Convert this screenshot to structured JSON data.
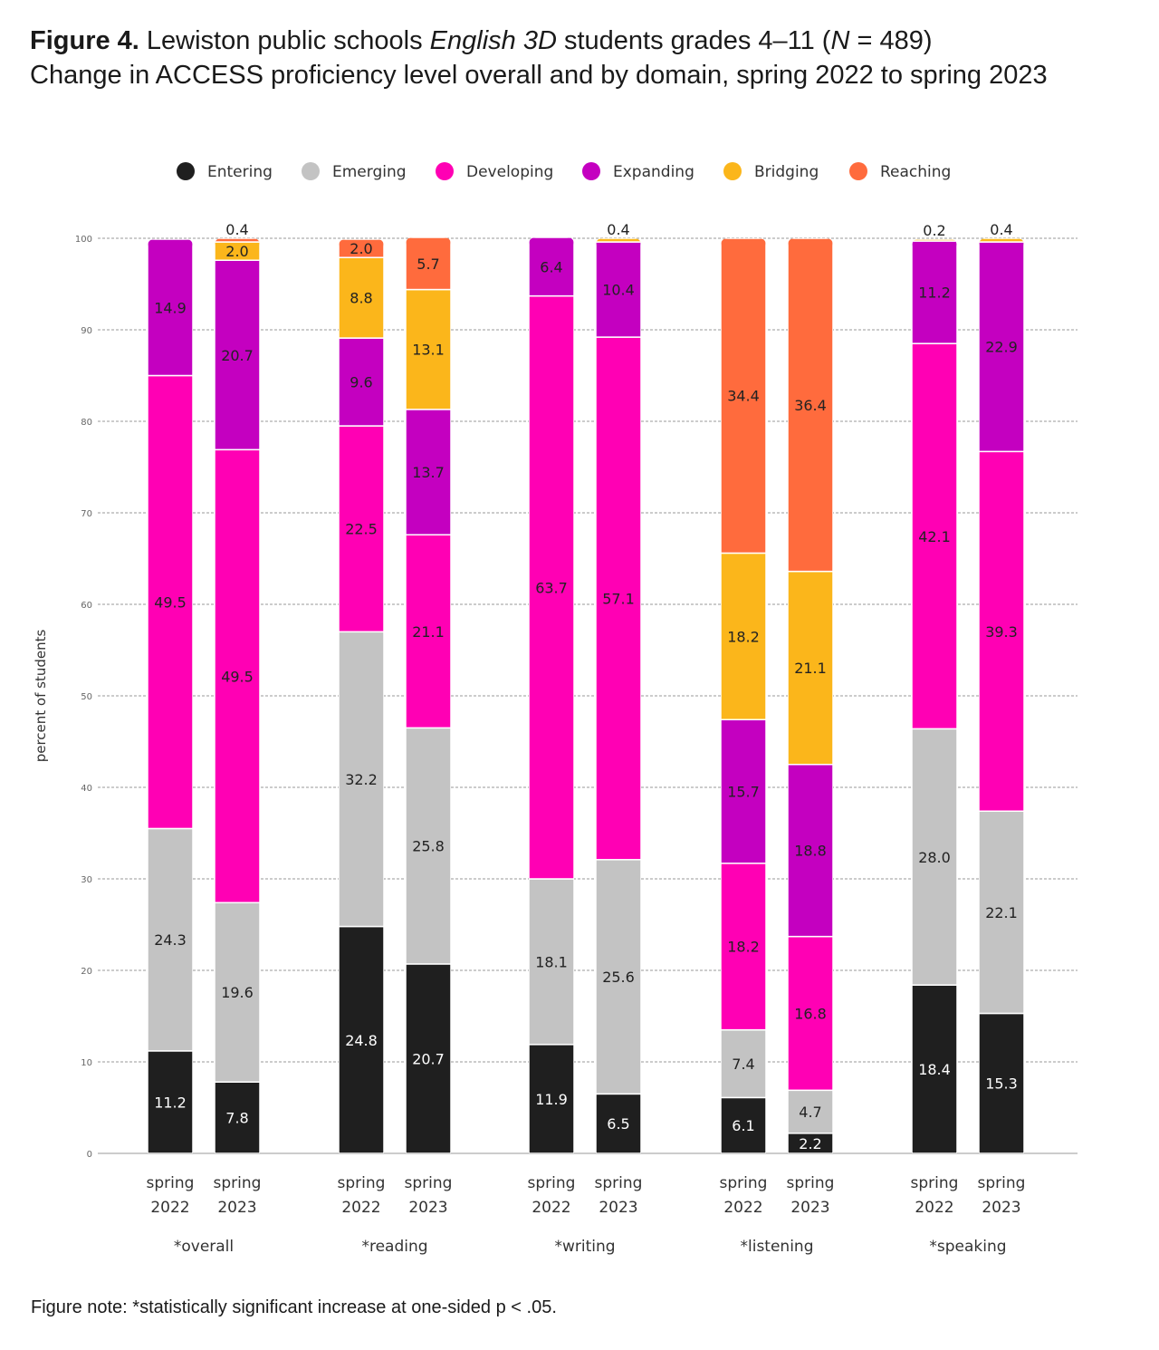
{
  "figure_label": "Figure 4.",
  "title_part1": " Lewiston public schools ",
  "title_italic": "English 3D",
  "title_part2": " students grades 4–11 (",
  "title_n_italic": "N",
  "title_part3": " = 489)",
  "subtitle": "Change in ACCESS proficiency level overall and by domain, spring 2022 to spring 2023",
  "note": "Figure note: *statistically significant increase at one-sided p < .05.",
  "chart_data": {
    "type": "bar",
    "stacked": true,
    "ylabel": "percent of students",
    "ylim": [
      0,
      100
    ],
    "yticks": [
      "0",
      "10",
      "20",
      "30",
      "40",
      "50",
      "60",
      "70",
      "80",
      "90",
      "100"
    ],
    "legend_position": "top",
    "levels": [
      {
        "name": "Entering",
        "color": "#1f1f1f",
        "label_color": "#ffffff"
      },
      {
        "name": "Emerging",
        "color": "#c3c3c3",
        "label_color": "#222222"
      },
      {
        "name": "Developing",
        "color": "#ff00b4",
        "label_color": "#222222"
      },
      {
        "name": "Expanding",
        "color": "#c400c0",
        "label_color": "#222222"
      },
      {
        "name": "Bridging",
        "color": "#fbb61b",
        "label_color": "#222222"
      },
      {
        "name": "Reaching",
        "color": "#ff6b3d",
        "label_color": "#222222"
      }
    ],
    "groups": [
      {
        "name": "*overall",
        "bars": [
          {
            "line1": "spring",
            "line2": "2022",
            "values": [
              11.2,
              24.3,
              49.5,
              14.9,
              0,
              0
            ],
            "labels": [
              "11.2",
              "24.3",
              "49.5",
              "14.9",
              "",
              ""
            ]
          },
          {
            "line1": "spring",
            "line2": "2023",
            "values": [
              7.8,
              19.6,
              49.5,
              20.7,
              2.0,
              0.4
            ],
            "labels": [
              "7.8",
              "19.6",
              "49.5",
              "20.7",
              "2.0",
              "0.4"
            ]
          }
        ]
      },
      {
        "name": "*reading",
        "bars": [
          {
            "line1": "spring",
            "line2": "2022",
            "values": [
              24.8,
              32.2,
              22.5,
              9.6,
              8.8,
              2.0
            ],
            "labels": [
              "24.8",
              "32.2",
              "22.5",
              "9.6",
              "8.8",
              "2.0"
            ]
          },
          {
            "line1": "spring",
            "line2": "2023",
            "values": [
              20.7,
              25.8,
              21.1,
              13.7,
              13.1,
              5.7
            ],
            "labels": [
              "20.7",
              "25.8",
              "21.1",
              "13.7",
              "13.1",
              "5.7"
            ]
          }
        ]
      },
      {
        "name": "*writing",
        "bars": [
          {
            "line1": "spring",
            "line2": "2022",
            "values": [
              11.9,
              18.1,
              63.7,
              6.4,
              0,
              0
            ],
            "labels": [
              "11.9",
              "18.1",
              "63.7",
              "6.4",
              "",
              ""
            ]
          },
          {
            "line1": "spring",
            "line2": "2023",
            "values": [
              6.5,
              25.6,
              57.1,
              10.4,
              0.4,
              0
            ],
            "labels": [
              "6.5",
              "25.6",
              "57.1",
              "10.4",
              "0.4",
              ""
            ]
          }
        ]
      },
      {
        "name": "*listening",
        "bars": [
          {
            "line1": "spring",
            "line2": "2022",
            "values": [
              6.1,
              7.4,
              18.2,
              15.7,
              18.2,
              34.4
            ],
            "labels": [
              "6.1",
              "7.4",
              "18.2",
              "15.7",
              "18.2",
              "34.4"
            ]
          },
          {
            "line1": "spring",
            "line2": "2023",
            "values": [
              2.2,
              4.7,
              16.8,
              18.8,
              21.1,
              36.4
            ],
            "labels": [
              "2.2",
              "4.7",
              "16.8",
              "18.8",
              "21.1",
              "36.4"
            ]
          }
        ]
      },
      {
        "name": "*speaking",
        "bars": [
          {
            "line1": "spring",
            "line2": "2022",
            "values": [
              18.4,
              28.0,
              42.1,
              11.2,
              0.2,
              0
            ],
            "labels": [
              "18.4",
              "28.0",
              "42.1",
              "11.2",
              "0.2",
              ""
            ]
          },
          {
            "line1": "spring",
            "line2": "2023",
            "values": [
              15.3,
              22.1,
              39.3,
              22.9,
              0.4,
              0
            ],
            "labels": [
              "15.3",
              "22.1",
              "39.3",
              "22.9",
              "0.4",
              ""
            ]
          }
        ]
      }
    ]
  }
}
